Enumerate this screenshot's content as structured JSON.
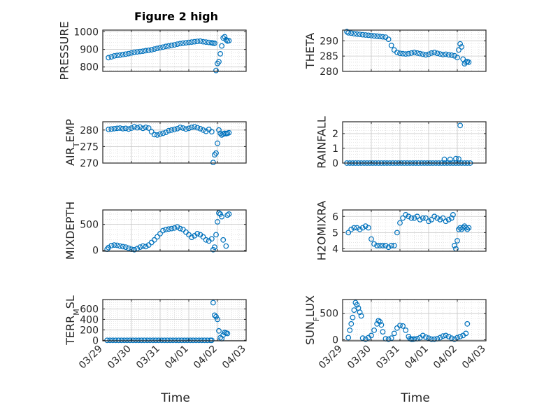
{
  "title": "Figure 2 high",
  "x_axis_label": "Time",
  "x_tick_labels": [
    "03/29",
    "03/30",
    "03/31",
    "04/01",
    "04/02",
    "04/03"
  ],
  "marker_color": "#0072BD",
  "chart_data": [
    {
      "type": "scatter",
      "id": "pressure",
      "ylabel": "PRESSURE",
      "ylim": [
        775,
        1010
      ],
      "yticks": [
        800,
        900,
        1000
      ],
      "xlim": [
        0,
        5
      ],
      "grid": true,
      "x": [
        0.2,
        0.3,
        0.4,
        0.5,
        0.6,
        0.7,
        0.8,
        0.9,
        1.0,
        1.1,
        1.2,
        1.3,
        1.4,
        1.5,
        1.6,
        1.7,
        1.8,
        1.9,
        2.0,
        2.1,
        2.2,
        2.3,
        2.4,
        2.5,
        2.6,
        2.7,
        2.8,
        2.9,
        3.0,
        3.1,
        3.2,
        3.3,
        3.4,
        3.5,
        3.6,
        3.7,
        3.8,
        3.85,
        3.9,
        3.95,
        4.0,
        4.05,
        4.1,
        4.15,
        4.2,
        4.25,
        4.3,
        4.35,
        4.4
      ],
      "y": [
        853,
        858,
        863,
        866,
        868,
        871,
        873,
        876,
        880,
        884,
        886,
        888,
        890,
        893,
        895,
        898,
        902,
        906,
        910,
        913,
        917,
        920,
        923,
        926,
        930,
        933,
        936,
        938,
        940,
        942,
        944,
        946,
        947,
        944,
        942,
        940,
        938,
        936,
        935,
        780,
        820,
        830,
        875,
        920,
        965,
        972,
        955,
        948,
        950
      ]
    },
    {
      "type": "scatter",
      "id": "theta",
      "ylabel": "THETA",
      "ylim": [
        280,
        293.5
      ],
      "yticks": [
        280,
        285,
        290
      ],
      "xlim": [
        0,
        5
      ],
      "grid": true,
      "x": [
        0.15,
        0.2,
        0.3,
        0.4,
        0.5,
        0.6,
        0.7,
        0.8,
        0.9,
        1.0,
        1.1,
        1.2,
        1.3,
        1.4,
        1.5,
        1.6,
        1.7,
        1.8,
        1.9,
        2.0,
        2.1,
        2.2,
        2.3,
        2.4,
        2.5,
        2.6,
        2.7,
        2.8,
        2.9,
        3.0,
        3.1,
        3.2,
        3.3,
        3.4,
        3.5,
        3.6,
        3.7,
        3.8,
        3.9,
        4.0,
        4.05,
        4.1,
        4.15,
        4.2,
        4.25,
        4.3,
        4.35,
        4.4
      ],
      "y": [
        293,
        292.6,
        292.5,
        292.3,
        292.2,
        292.1,
        292,
        291.9,
        291.8,
        291.7,
        291.6,
        291.5,
        291.4,
        291.3,
        291.2,
        290.5,
        288.5,
        287,
        286.2,
        285.9,
        285.8,
        285.7,
        285.8,
        286,
        286.2,
        286,
        285.8,
        285.6,
        285.4,
        285.6,
        286,
        286.2,
        285.9,
        285.7,
        285.5,
        285.6,
        285.4,
        285.3,
        285.1,
        284.5,
        287,
        289,
        288,
        284,
        282.5,
        283,
        283.2,
        283
      ]
    },
    {
      "type": "scatter",
      "id": "air_temp",
      "ylabel": "AIR",
      "ylabel_sub": "T",
      "ylabel_rest": "EMP",
      "ylim": [
        270,
        282.5
      ],
      "yticks": [
        270,
        275,
        280
      ],
      "xlim": [
        0,
        5
      ],
      "grid": true,
      "x": [
        0.2,
        0.3,
        0.4,
        0.5,
        0.6,
        0.7,
        0.8,
        0.9,
        1.0,
        1.1,
        1.2,
        1.3,
        1.4,
        1.5,
        1.6,
        1.7,
        1.8,
        1.9,
        2.0,
        2.1,
        2.2,
        2.3,
        2.4,
        2.5,
        2.6,
        2.7,
        2.8,
        2.9,
        3.0,
        3.1,
        3.2,
        3.3,
        3.4,
        3.5,
        3.6,
        3.7,
        3.8,
        3.85,
        3.9,
        3.95,
        4.0,
        4.05,
        4.1,
        4.15,
        4.2,
        4.25,
        4.3,
        4.35,
        4.4
      ],
      "y": [
        280.2,
        280.3,
        280.4,
        280.5,
        280.6,
        280.4,
        280.5,
        280.3,
        280.6,
        281,
        280.7,
        280.9,
        280.5,
        280.8,
        280.6,
        279.5,
        278.6,
        278.5,
        278.8,
        279,
        279.3,
        279.8,
        280,
        280.2,
        280.4,
        280.8,
        280.6,
        280.3,
        280.5,
        280.8,
        281,
        280.7,
        280.4,
        280,
        279.6,
        280.2,
        279.5,
        270.2,
        272.5,
        273,
        276,
        280,
        279,
        278.5,
        278.8,
        279,
        278.9,
        279,
        279.2
      ]
    },
    {
      "type": "scatter",
      "id": "rainfall",
      "ylabel": "RAINFALL",
      "ylim": [
        0,
        2.8
      ],
      "yticks": [
        0,
        1,
        2
      ],
      "xlim": [
        0,
        5
      ],
      "grid": true,
      "x": [
        0.15,
        0.25,
        0.35,
        0.45,
        0.55,
        0.65,
        0.75,
        0.85,
        0.95,
        1.05,
        1.15,
        1.25,
        1.35,
        1.45,
        1.55,
        1.65,
        1.75,
        1.85,
        1.95,
        2.05,
        2.15,
        2.25,
        2.35,
        2.45,
        2.55,
        2.65,
        2.75,
        2.85,
        2.95,
        3.05,
        3.15,
        3.25,
        3.35,
        3.45,
        3.55,
        3.65,
        3.75,
        3.85,
        3.95,
        4.05,
        4.15,
        4.25,
        4.35,
        4.45,
        3.55,
        3.75,
        3.95,
        4.05,
        4.1
      ],
      "y": [
        0,
        0,
        0,
        0,
        0,
        0,
        0,
        0,
        0,
        0,
        0,
        0,
        0,
        0,
        0,
        0,
        0,
        0,
        0,
        0,
        0,
        0,
        0,
        0,
        0,
        0,
        0,
        0,
        0,
        0,
        0,
        0,
        0,
        0,
        0,
        0,
        0,
        0,
        0,
        0,
        0,
        0,
        0,
        0,
        0.25,
        0.25,
        0.3,
        0.28,
        2.55
      ]
    },
    {
      "type": "scatter",
      "id": "mixdepth",
      "ylabel": "MIXDEPTH",
      "ylim": [
        -20,
        780
      ],
      "yticks": [
        0,
        500
      ],
      "xlim": [
        0,
        5
      ],
      "grid": true,
      "x": [
        0.15,
        0.2,
        0.3,
        0.4,
        0.5,
        0.6,
        0.7,
        0.8,
        0.9,
        1.0,
        1.1,
        1.2,
        1.3,
        1.4,
        1.5,
        1.6,
        1.7,
        1.8,
        1.9,
        2.0,
        2.1,
        2.2,
        2.3,
        2.4,
        2.5,
        2.6,
        2.7,
        2.8,
        2.9,
        3.0,
        3.1,
        3.2,
        3.3,
        3.4,
        3.5,
        3.6,
        3.7,
        3.8,
        3.85,
        3.9,
        3.95,
        4.0,
        4.05,
        4.1,
        4.15,
        4.2,
        4.3,
        4.35,
        4.4
      ],
      "y": [
        20,
        50,
        90,
        100,
        95,
        80,
        70,
        60,
        40,
        20,
        10,
        30,
        60,
        80,
        70,
        100,
        150,
        200,
        260,
        320,
        380,
        400,
        410,
        420,
        430,
        450,
        420,
        400,
        350,
        300,
        250,
        280,
        320,
        300,
        260,
        200,
        180,
        220,
        10,
        60,
        300,
        550,
        720,
        700,
        650,
        200,
        80,
        680,
        700
      ]
    },
    {
      "type": "scatter",
      "id": "h2omixra",
      "ylabel": "H2OMIXRA",
      "ylim": [
        3.85,
        6.4
      ],
      "yticks": [
        4,
        5,
        6
      ],
      "xlim": [
        0,
        5
      ],
      "grid": true,
      "x": [
        0.2,
        0.3,
        0.4,
        0.5,
        0.6,
        0.7,
        0.8,
        0.9,
        1.0,
        1.1,
        1.2,
        1.3,
        1.4,
        1.5,
        1.6,
        1.7,
        1.8,
        1.9,
        2.0,
        2.1,
        2.2,
        2.3,
        2.4,
        2.5,
        2.6,
        2.7,
        2.8,
        2.9,
        3.0,
        3.1,
        3.2,
        3.3,
        3.4,
        3.5,
        3.6,
        3.7,
        3.8,
        3.85,
        3.9,
        3.95,
        4.0,
        4.05,
        4.1,
        4.15,
        4.2,
        4.25,
        4.3,
        4.35,
        4.4
      ],
      "y": [
        5.0,
        5.2,
        5.3,
        5.3,
        5.2,
        5.3,
        5.4,
        5.3,
        4.6,
        4.3,
        4.2,
        4.2,
        4.2,
        4.2,
        4.1,
        4.2,
        4.2,
        5.0,
        5.6,
        5.9,
        6.1,
        6.0,
        5.9,
        5.9,
        6.0,
        5.8,
        5.9,
        5.9,
        5.7,
        5.8,
        6.0,
        5.9,
        5.8,
        5.9,
        5.7,
        5.8,
        5.9,
        6.1,
        4.2,
        4.0,
        4.5,
        5.2,
        5.3,
        5.2,
        5.3,
        5.4,
        5.3,
        5.2,
        5.3
      ]
    },
    {
      "type": "scatter",
      "id": "terr_msl",
      "ylabel": "TERR",
      "ylabel_sub": "M",
      "ylabel_rest": "SL",
      "ylim": [
        -10,
        780
      ],
      "yticks": [
        0,
        200,
        400,
        600
      ],
      "xlim": [
        0,
        5
      ],
      "grid": true,
      "x": [
        0.15,
        0.25,
        0.35,
        0.45,
        0.55,
        0.65,
        0.75,
        0.85,
        0.95,
        1.05,
        1.15,
        1.25,
        1.35,
        1.45,
        1.55,
        1.65,
        1.75,
        1.85,
        1.95,
        2.05,
        2.15,
        2.25,
        2.35,
        2.45,
        2.55,
        2.65,
        2.75,
        2.85,
        2.95,
        3.05,
        3.15,
        3.25,
        3.35,
        3.45,
        3.55,
        3.65,
        3.75,
        3.8,
        3.85,
        3.9,
        3.95,
        4.0,
        4.05,
        4.1,
        4.15,
        4.2,
        4.25,
        4.3,
        4.35
      ],
      "y": [
        0,
        0,
        0,
        0,
        0,
        0,
        0,
        0,
        0,
        0,
        0,
        0,
        0,
        0,
        0,
        0,
        0,
        0,
        0,
        0,
        0,
        0,
        0,
        0,
        0,
        0,
        0,
        0,
        0,
        0,
        0,
        0,
        0,
        0,
        0,
        0,
        0,
        0,
        720,
        480,
        450,
        400,
        180,
        50,
        30,
        100,
        150,
        140,
        130
      ]
    },
    {
      "type": "scatter",
      "id": "sun_flux",
      "ylabel": "SUN",
      "ylabel_sub": "F",
      "ylabel_rest": "LUX",
      "ylim": [
        -20,
        760
      ],
      "yticks": [
        0,
        500
      ],
      "xlim": [
        0,
        5
      ],
      "grid": true,
      "x": [
        0.2,
        0.25,
        0.3,
        0.35,
        0.4,
        0.45,
        0.5,
        0.55,
        0.6,
        0.65,
        0.7,
        0.8,
        0.9,
        1.0,
        1.1,
        1.2,
        1.25,
        1.3,
        1.35,
        1.4,
        1.5,
        1.6,
        1.7,
        1.8,
        1.9,
        2.0,
        2.1,
        2.2,
        2.3,
        2.35,
        2.4,
        2.45,
        2.5,
        2.6,
        2.7,
        2.8,
        2.9,
        3.0,
        3.1,
        3.2,
        3.3,
        3.4,
        3.5,
        3.6,
        3.7,
        3.8,
        3.9,
        4.0,
        4.1,
        4.2,
        4.3,
        4.35
      ],
      "y": [
        40,
        180,
        300,
        420,
        560,
        700,
        660,
        600,
        520,
        450,
        30,
        10,
        40,
        80,
        180,
        300,
        360,
        340,
        280,
        150,
        20,
        10,
        30,
        120,
        220,
        270,
        260,
        180,
        60,
        20,
        10,
        10,
        15,
        20,
        40,
        80,
        50,
        30,
        10,
        10,
        20,
        40,
        70,
        80,
        60,
        30,
        10,
        40,
        60,
        80,
        120,
        300
      ]
    }
  ]
}
